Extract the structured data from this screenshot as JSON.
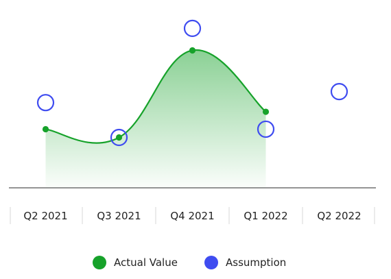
{
  "chart_data": {
    "type": "line",
    "categories": [
      "Q2 2021",
      "Q3 2021",
      "Q4 2021",
      "Q1 2022",
      "Q2 2022"
    ],
    "series": [
      {
        "name": "Actual Value",
        "values": [
          3.4,
          2.5,
          12.0,
          5.3,
          null
        ],
        "color": "#16A22A",
        "style": "smooth-area"
      },
      {
        "name": "Assumption",
        "values": [
          6.3,
          2.5,
          14.4,
          3.4,
          7.5
        ],
        "color": "#3F4CF0",
        "style": "hollow-circles"
      }
    ],
    "ylim": [
      -3,
      16
    ],
    "grid": false,
    "legend_position": "bottom-center"
  }
}
